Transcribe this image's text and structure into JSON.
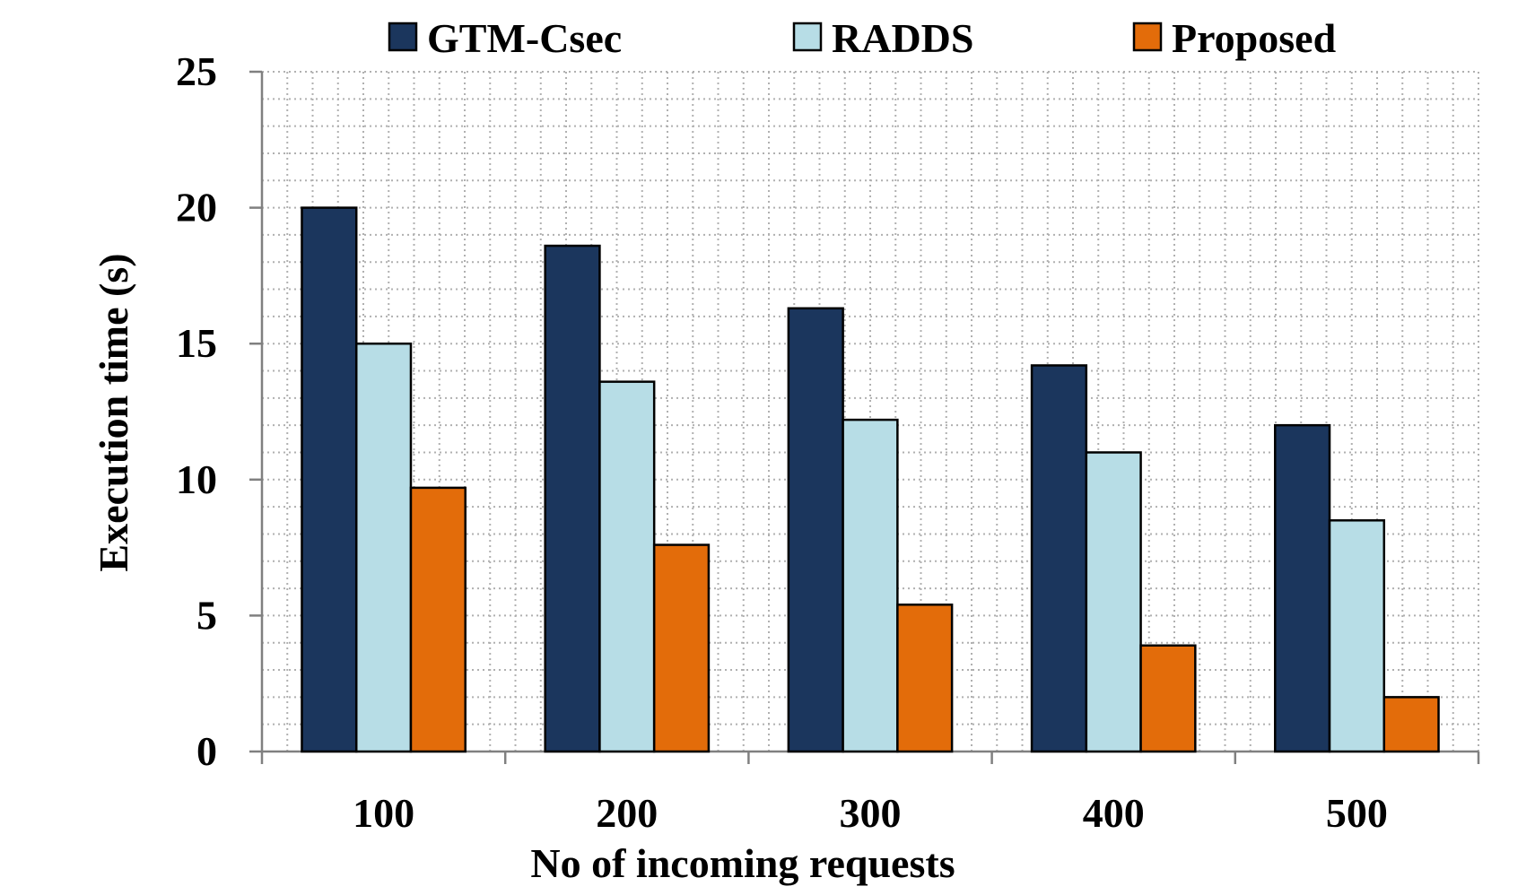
{
  "chart_data": {
    "type": "bar",
    "title": "",
    "xlabel": "No of incoming requests",
    "ylabel": "Execution time (s)",
    "categories": [
      "100",
      "200",
      "300",
      "400",
      "500"
    ],
    "ylim": [
      0,
      25
    ],
    "yticks": [
      0,
      5,
      10,
      15,
      20,
      25
    ],
    "grid": true,
    "legend_position": "top",
    "series": [
      {
        "name": "GTM-Csec",
        "color": "#1b365d",
        "values": [
          20.0,
          18.6,
          16.3,
          14.2,
          12.0
        ]
      },
      {
        "name": "RADDS",
        "color": "#b7dde6",
        "values": [
          15.0,
          13.6,
          12.2,
          11.0,
          8.5
        ]
      },
      {
        "name": "Proposed",
        "color": "#e36c0a",
        "values": [
          9.7,
          7.6,
          5.4,
          3.9,
          2.0
        ]
      }
    ]
  }
}
